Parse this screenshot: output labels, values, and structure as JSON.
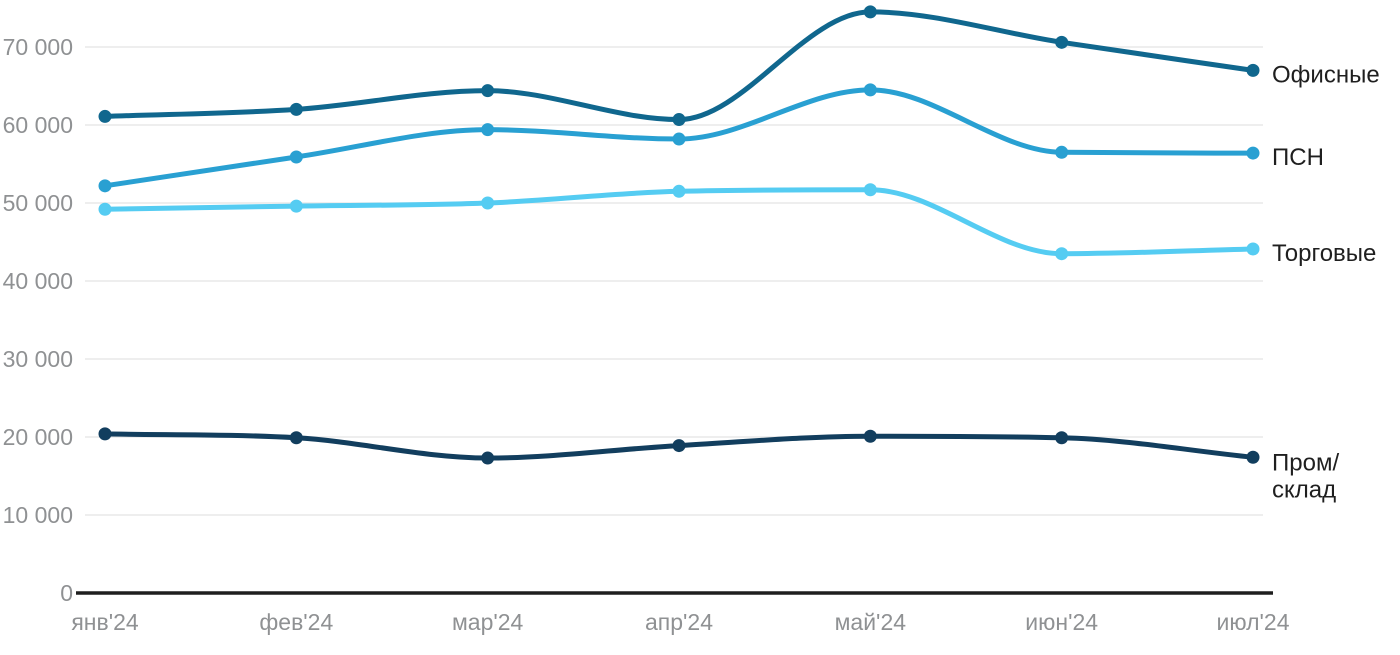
{
  "chart_data": {
    "type": "line",
    "title": "",
    "xlabel": "",
    "ylabel": "",
    "x": [
      "янв'24",
      "фев'24",
      "мар'24",
      "апр'24",
      "май'24",
      "июн'24",
      "июл'24"
    ],
    "series": [
      {
        "name": "Офисные",
        "slug": "offices",
        "color": "#10678e",
        "label_lines": [
          "Офисные"
        ],
        "values": [
          61100,
          62000,
          64400,
          60700,
          74500,
          70600,
          67000
        ]
      },
      {
        "name": "ПСН",
        "slug": "psn",
        "color": "#29a0d2",
        "label_lines": [
          "ПСН"
        ],
        "values": [
          52200,
          55900,
          59400,
          58200,
          64500,
          56500,
          56400
        ]
      },
      {
        "name": "Торговые",
        "slug": "retail",
        "color": "#55ccf2",
        "label_lines": [
          "Торговые"
        ],
        "values": [
          49200,
          49600,
          50000,
          51500,
          51700,
          43500,
          44100
        ]
      },
      {
        "name": "Пром/склад",
        "slug": "industrial-warehouse",
        "color": "#123e5e",
        "label_lines": [
          "Пром/",
          "склад"
        ],
        "values": [
          20400,
          19900,
          17300,
          18900,
          20100,
          19900,
          17400
        ]
      }
    ],
    "y_ticks": [
      0,
      10000,
      20000,
      30000,
      40000,
      50000,
      60000,
      70000
    ],
    "y_tick_labels": [
      "0",
      "10 000",
      "20 000",
      "30 000",
      "40 000",
      "50 000",
      "60 000",
      "70 000"
    ],
    "ylim": [
      0,
      75000
    ],
    "grid": "horizontal",
    "legend_position": "right-end-labels",
    "curve": "smooth-monotone"
  },
  "colors": {
    "background": "#ffffff",
    "grid": "#e8e8e8",
    "axis": "#1e1e1e",
    "tick_label": "#8f9193",
    "series_label": "#1f1f1f"
  }
}
